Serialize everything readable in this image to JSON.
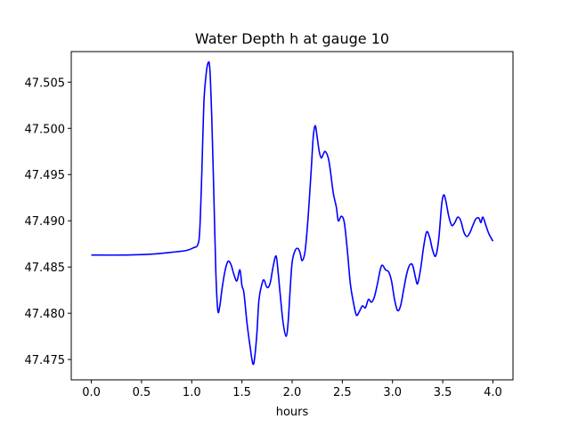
{
  "chart_data": {
    "type": "line",
    "title": "Water Depth h at gauge 10",
    "xlabel": "hours",
    "ylabel": "",
    "xlim": [
      -0.2,
      4.2
    ],
    "ylim": [
      47.4728,
      47.5083
    ],
    "xticks": [
      0.0,
      0.5,
      1.0,
      1.5,
      2.0,
      2.5,
      3.0,
      3.5,
      4.0
    ],
    "xtick_labels": [
      "0.0",
      "0.5",
      "1.0",
      "1.5",
      "2.0",
      "2.5",
      "3.0",
      "3.5",
      "4.0"
    ],
    "yticks": [
      47.475,
      47.48,
      47.485,
      47.49,
      47.495,
      47.5,
      47.505
    ],
    "ytick_labels": [
      "47.475",
      "47.480",
      "47.485",
      "47.490",
      "47.495",
      "47.500",
      "47.505"
    ],
    "grid": false,
    "series": [
      {
        "color": "#0000ff",
        "x": [
          0.0,
          0.3,
          0.6,
          0.8,
          0.95,
          1.02,
          1.06,
          1.08,
          1.1,
          1.12,
          1.14,
          1.16,
          1.18,
          1.2,
          1.22,
          1.24,
          1.26,
          1.28,
          1.3,
          1.33,
          1.36,
          1.39,
          1.42,
          1.45,
          1.48,
          1.5,
          1.52,
          1.55,
          1.58,
          1.61,
          1.63,
          1.65,
          1.67,
          1.7,
          1.72,
          1.75,
          1.78,
          1.81,
          1.84,
          1.86,
          1.88,
          1.91,
          1.94,
          1.96,
          1.98,
          2.0,
          2.03,
          2.06,
          2.08,
          2.1,
          2.13,
          2.16,
          2.19,
          2.21,
          2.23,
          2.25,
          2.27,
          2.29,
          2.31,
          2.33,
          2.36,
          2.38,
          2.41,
          2.44,
          2.46,
          2.49,
          2.52,
          2.55,
          2.58,
          2.61,
          2.64,
          2.67,
          2.7,
          2.73,
          2.76,
          2.79,
          2.82,
          2.85,
          2.88,
          2.9,
          2.93,
          2.96,
          2.99,
          3.02,
          3.05,
          3.08,
          3.11,
          3.14,
          3.17,
          3.2,
          3.23,
          3.25,
          3.28,
          3.31,
          3.34,
          3.37,
          3.4,
          3.43,
          3.46,
          3.49,
          3.51,
          3.53,
          3.56,
          3.59,
          3.62,
          3.65,
          3.68,
          3.71,
          3.74,
          3.77,
          3.8,
          3.83,
          3.86,
          3.88,
          3.9,
          3.93,
          3.96,
          4.0
        ],
        "y": [
          47.4863,
          47.4863,
          47.4864,
          47.4866,
          47.4868,
          47.4871,
          47.4874,
          47.489,
          47.495,
          47.5025,
          47.5055,
          47.507,
          47.5065,
          47.501,
          47.493,
          47.4845,
          47.4803,
          47.4808,
          47.4825,
          47.4845,
          47.4856,
          47.4853,
          47.4842,
          47.4835,
          47.4847,
          47.483,
          47.4822,
          47.479,
          47.4765,
          47.4745,
          47.4755,
          47.478,
          47.4815,
          47.4832,
          47.4836,
          47.4828,
          47.4832,
          47.485,
          47.4862,
          47.4845,
          47.4822,
          47.479,
          47.4775,
          47.479,
          47.4825,
          47.4855,
          47.4868,
          47.487,
          47.4865,
          47.4857,
          47.4868,
          47.4905,
          47.4955,
          47.499,
          47.5003,
          47.499,
          47.4975,
          47.4968,
          47.4972,
          47.4975,
          47.4968,
          47.4955,
          47.493,
          47.4915,
          47.49,
          47.4905,
          47.4898,
          47.4868,
          47.4832,
          47.4812,
          47.4798,
          47.4802,
          47.4808,
          47.4806,
          47.4815,
          47.4812,
          47.4818,
          47.4832,
          47.4848,
          47.4852,
          47.4847,
          47.4845,
          47.4835,
          47.4815,
          47.4803,
          47.4808,
          47.4825,
          47.4842,
          47.4852,
          47.4852,
          47.4838,
          47.4832,
          47.4848,
          47.4872,
          47.4888,
          47.4882,
          47.4868,
          47.4862,
          47.488,
          47.4918,
          47.4928,
          47.4922,
          47.4905,
          47.4895,
          47.4898,
          47.4904,
          47.49,
          47.4888,
          47.4883,
          47.4887,
          47.4895,
          47.4902,
          47.4903,
          47.4898,
          47.4904,
          47.4895,
          47.4886,
          47.4878
        ]
      }
    ]
  }
}
